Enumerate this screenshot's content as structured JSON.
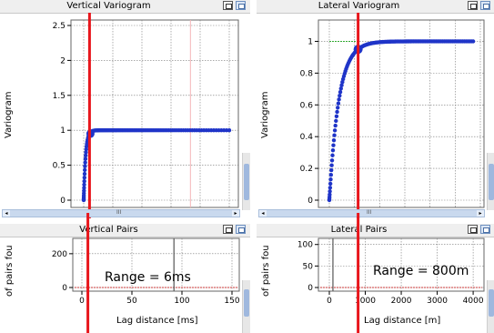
{
  "panels": {
    "vertical_variogram": {
      "title": "Vertical Variogram",
      "ylabel": "Variogram"
    },
    "lateral_variogram": {
      "title": "Lateral Variogram",
      "ylabel": "Variogram"
    },
    "vertical_pairs": {
      "title": "Vertical Pairs",
      "ylabel": "of pairs fou",
      "xlabel": "Lag distance [ms]",
      "annotation": "Range = 6ms"
    },
    "lateral_pairs": {
      "title": "Lateral Pairs",
      "ylabel": "of pairs fou",
      "xlabel": "Lag distance [m]",
      "annotation": "Range = 800m"
    }
  },
  "scrollbar_label": "III",
  "colors": {
    "model": "#1f34c8",
    "range_line": "#e8151b",
    "sill_line": "#33aa33",
    "grid": "#7a7a7a",
    "pair_line": "#d66060"
  },
  "chart_data": [
    {
      "type": "scatter",
      "title": "Vertical Variogram",
      "ylabel": "Variogram",
      "ylim": [
        0,
        2.5
      ],
      "yticks": [
        "0",
        "0.5",
        "1",
        "1.5",
        "2",
        "2.5"
      ],
      "xlim": [
        0,
        150
      ],
      "model": {
        "range": 6,
        "sill": 1
      },
      "range_marker": 6,
      "secondary_marker": 110
    },
    {
      "type": "scatter",
      "title": "Lateral Variogram",
      "ylabel": "Variogram",
      "ylim": [
        0,
        1.1
      ],
      "yticks": [
        "0",
        "0.2",
        "0.4",
        "0.6",
        "0.8",
        "1"
      ],
      "xlim": [
        0,
        4200
      ],
      "model": {
        "range": 800,
        "sill": 1
      },
      "range_marker": 800
    },
    {
      "type": "bar",
      "title": "Vertical Pairs",
      "xlabel": "Lag distance [ms]",
      "ylabel": "of pairs fou",
      "xlim": [
        -5,
        150
      ],
      "xticks": [
        "0",
        "50",
        "100",
        "150"
      ],
      "yticks": [
        "0",
        "200"
      ],
      "ylim": [
        0,
        280
      ],
      "range_marker": 6,
      "bar_at": 92
    },
    {
      "type": "bar",
      "title": "Lateral Pairs",
      "xlabel": "Lag distance [m]",
      "ylabel": "of pairs fou",
      "xlim": [
        -300,
        4200
      ],
      "xticks": [
        "0",
        "1000",
        "2000",
        "3000",
        "4000"
      ],
      "yticks": [
        "0",
        "50",
        "100"
      ],
      "ylim": [
        0,
        110
      ],
      "range_marker": 800,
      "bar_at": 100
    }
  ]
}
